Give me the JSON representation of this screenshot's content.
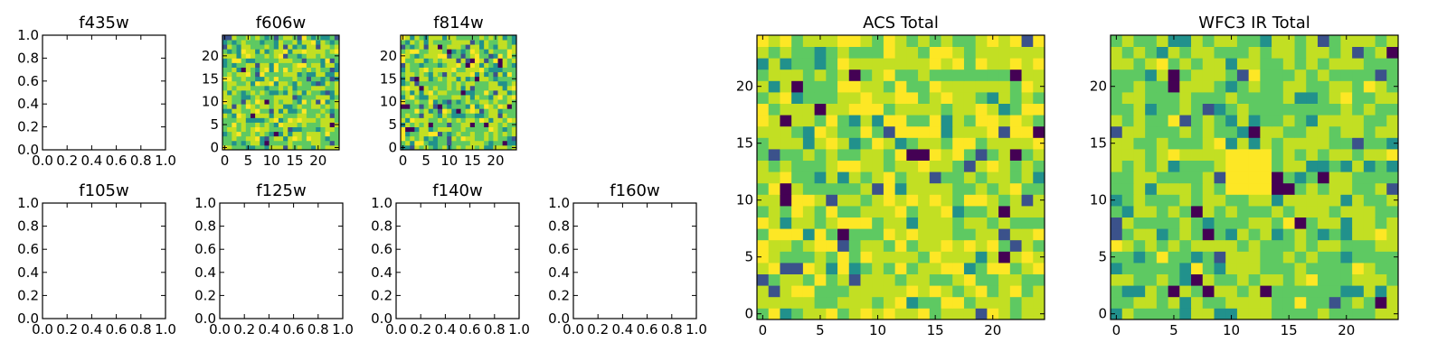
{
  "figure": {
    "background": "#ffffff"
  },
  "colormap": [
    "#440154",
    "#3b528b",
    "#21918c",
    "#5ec962",
    "#c2df23",
    "#fde725"
  ],
  "chart_data": [
    {
      "id": "f435w",
      "type": "heatmap",
      "title": "f435w",
      "empty": true,
      "xticks": [
        "0.0",
        "0.2",
        "0.4",
        "0.6",
        "0.8",
        "1.0"
      ],
      "yticks": [
        "0.0",
        "0.2",
        "0.4",
        "0.6",
        "0.8",
        "1.0"
      ],
      "xlim": [
        0,
        1
      ],
      "ylim": [
        0,
        1
      ]
    },
    {
      "id": "f606w",
      "type": "heatmap",
      "title": "f606w",
      "empty": false,
      "grid_size": 25,
      "seed": 606,
      "levels": [
        0.05,
        0.17,
        0.38,
        0.33,
        0.07
      ],
      "xticks": [
        "0",
        "5",
        "10",
        "15",
        "20"
      ],
      "yticks": [
        "0",
        "5",
        "10",
        "15",
        "20"
      ],
      "xlim": [
        -0.5,
        24.5
      ],
      "ylim": [
        -0.5,
        24.5
      ]
    },
    {
      "id": "f814w",
      "type": "heatmap",
      "title": "f814w",
      "empty": false,
      "grid_size": 25,
      "seed": 814,
      "levels": [
        0.05,
        0.15,
        0.38,
        0.35,
        0.07
      ],
      "xticks": [
        "0",
        "5",
        "10",
        "15",
        "20"
      ],
      "yticks": [
        "0",
        "5",
        "10",
        "15",
        "20"
      ],
      "xlim": [
        -0.5,
        24.5
      ],
      "ylim": [
        -0.5,
        24.5
      ]
    },
    {
      "id": "f105w",
      "type": "heatmap",
      "title": "f105w",
      "empty": true,
      "xticks": [
        "0.0",
        "0.2",
        "0.4",
        "0.6",
        "0.8",
        "1.0"
      ],
      "yticks": [
        "0.0",
        "0.2",
        "0.4",
        "0.6",
        "0.8",
        "1.0"
      ],
      "xlim": [
        0,
        1
      ],
      "ylim": [
        0,
        1
      ]
    },
    {
      "id": "f125w",
      "type": "heatmap",
      "title": "f125w",
      "empty": true,
      "xticks": [
        "0.0",
        "0.2",
        "0.4",
        "0.6",
        "0.8",
        "1.0"
      ],
      "yticks": [
        "0.0",
        "0.2",
        "0.4",
        "0.6",
        "0.8",
        "1.0"
      ],
      "xlim": [
        0,
        1
      ],
      "ylim": [
        0,
        1
      ]
    },
    {
      "id": "f140w",
      "type": "heatmap",
      "title": "f140w",
      "empty": true,
      "xticks": [
        "0.0",
        "0.2",
        "0.4",
        "0.6",
        "0.8",
        "1.0"
      ],
      "yticks": [
        "0.0",
        "0.2",
        "0.4",
        "0.6",
        "0.8",
        "1.0"
      ],
      "xlim": [
        0,
        1
      ],
      "ylim": [
        0,
        1
      ]
    },
    {
      "id": "f160w",
      "type": "heatmap",
      "title": "f160w",
      "empty": true,
      "xticks": [
        "0.0",
        "0.2",
        "0.4",
        "0.6",
        "0.8",
        "1.0"
      ],
      "yticks": [
        "0.0",
        "0.2",
        "0.4",
        "0.6",
        "0.8",
        "1.0"
      ],
      "xlim": [
        0,
        1
      ],
      "ylim": [
        0,
        1
      ]
    },
    {
      "id": "acs_total",
      "type": "heatmap",
      "title": "ACS Total",
      "empty": false,
      "grid_size": 25,
      "seed": 1234,
      "levels": [
        0.02,
        0.05,
        0.28,
        0.45,
        0.2
      ],
      "xticks": [
        "0",
        "5",
        "10",
        "15",
        "20"
      ],
      "yticks": [
        "0",
        "5",
        "10",
        "15",
        "20"
      ],
      "xlim": [
        -0.5,
        24.5
      ],
      "ylim": [
        -0.5,
        24.5
      ]
    },
    {
      "id": "wfc3_ir_total",
      "type": "heatmap",
      "title": "WFC3 IR Total",
      "empty": false,
      "grid_size": 25,
      "seed": 4321,
      "levels": [
        0.03,
        0.09,
        0.45,
        0.4,
        0.03
      ],
      "bright_spot": {
        "x": 11.5,
        "y": 12.5,
        "radius": 2.5
      },
      "xticks": [
        "0",
        "5",
        "10",
        "15",
        "20"
      ],
      "yticks": [
        "0",
        "5",
        "10",
        "15",
        "20"
      ],
      "xlim": [
        -0.5,
        24.5
      ],
      "ylim": [
        -0.5,
        24.5
      ]
    }
  ]
}
